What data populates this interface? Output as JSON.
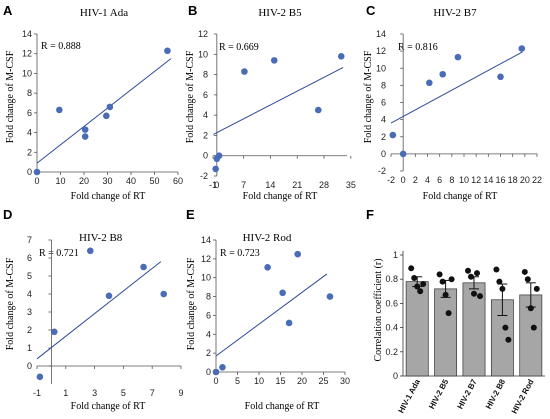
{
  "chart_data": [
    {
      "type": "scatter",
      "panel": "A",
      "title": "HIV-1 Ada",
      "annotation": "R = 0.888",
      "xlabel": "Fold change of RT",
      "ylabel": "Fold change of M-CSF",
      "xlim": [
        0,
        60
      ],
      "ylim": [
        0,
        14
      ],
      "xticks": [
        0,
        10,
        20,
        30,
        40,
        50,
        60
      ],
      "yticks": [
        0,
        2,
        4,
        6,
        8,
        10,
        12,
        14
      ],
      "points": [
        [
          0,
          0
        ],
        [
          9.5,
          6.3
        ],
        [
          20.5,
          3.6
        ],
        [
          20.5,
          4.3
        ],
        [
          29.5,
          5.7
        ],
        [
          31,
          6.6
        ],
        [
          55.5,
          12.3
        ]
      ],
      "trendline": [
        [
          0,
          0.9
        ],
        [
          57,
          11.5
        ]
      ]
    },
    {
      "type": "scatter",
      "panel": "B",
      "title": "HIV-2 B5",
      "annotation": "R = 0.669",
      "xlabel": "Fold change of RT",
      "ylabel": "Fold change of M-CSF",
      "xlim": [
        -1,
        34
      ],
      "ylim": [
        -2,
        12
      ],
      "xticks": [
        -1,
        0,
        7,
        14,
        21,
        28,
        35
      ],
      "xtick_labels": [
        "-1",
        "0",
        "7",
        "14",
        "21",
        "28",
        "35"
      ],
      "yticks": [
        -2,
        0,
        2,
        4,
        6,
        8,
        10,
        12
      ],
      "points": [
        [
          -0.3,
          -1.3
        ],
        [
          0,
          -0.3
        ],
        [
          0.6,
          0
        ],
        [
          7.2,
          8.3
        ],
        [
          15,
          9.4
        ],
        [
          26.5,
          4.5
        ],
        [
          32.5,
          9.8
        ]
      ],
      "trendline": [
        [
          -0.9,
          2.1
        ],
        [
          33,
          8.7
        ]
      ]
    },
    {
      "type": "scatter",
      "panel": "C",
      "title": "HIV-2 B7",
      "annotation": "R = 0.816",
      "xlabel": "Fold change of RT",
      "ylabel": "Fold change of M-CSF",
      "xlim": [
        -2,
        22
      ],
      "ylim": [
        -2,
        14
      ],
      "xticks": [
        -2,
        0,
        2,
        4,
        6,
        8,
        10,
        12,
        14,
        16,
        18,
        20,
        22
      ],
      "yticks": [
        -2,
        0,
        2,
        4,
        6,
        8,
        10,
        12,
        14
      ],
      "points": [
        [
          -1.7,
          2.2
        ],
        [
          0,
          0
        ],
        [
          4.3,
          8.3
        ],
        [
          6.5,
          9.3
        ],
        [
          9,
          11.3
        ],
        [
          16,
          9
        ],
        [
          19.5,
          12.3
        ]
      ],
      "trendline": [
        [
          -2,
          3.6
        ],
        [
          19.6,
          11.9
        ]
      ]
    },
    {
      "type": "scatter",
      "panel": "D",
      "title": "HIV-2 B8",
      "annotation": "R = 0.721",
      "xlabel": "Fold change of RT",
      "ylabel": "Fold change of M-CSF",
      "xlim": [
        -1,
        9
      ],
      "ylim": [
        -1,
        7
      ],
      "xticks": [
        -1,
        1,
        3,
        5,
        7,
        9
      ],
      "yticks": [
        0,
        1,
        2,
        3,
        4,
        5,
        6,
        7
      ],
      "points": [
        [
          -0.8,
          -0.6
        ],
        [
          0.2,
          1.9
        ],
        [
          2.7,
          6.4
        ],
        [
          4,
          3.9
        ],
        [
          6.4,
          5.5
        ],
        [
          7.8,
          4
        ]
      ],
      "trendline": [
        [
          -1,
          0.4
        ],
        [
          7.6,
          5.8
        ]
      ]
    },
    {
      "type": "scatter",
      "panel": "E",
      "title": "HIV-2 Rod",
      "annotation": "R = 0.723",
      "xlabel": "Fold change of RT",
      "ylabel": "Fold change of M-CSF",
      "xlim": [
        0,
        30
      ],
      "ylim": [
        0,
        14
      ],
      "xticks": [
        0,
        5,
        10,
        15,
        20,
        25,
        30
      ],
      "yticks": [
        0,
        2,
        4,
        6,
        8,
        10,
        12,
        14
      ],
      "points": [
        [
          0,
          0
        ],
        [
          1.5,
          0.5
        ],
        [
          12,
          11.1
        ],
        [
          15.5,
          8.4
        ],
        [
          17,
          5.2
        ],
        [
          19,
          12.5
        ],
        [
          26.5,
          8
        ]
      ],
      "trendline": [
        [
          0,
          1.7
        ],
        [
          25.8,
          10.4
        ]
      ]
    },
    {
      "type": "bar",
      "panel": "F",
      "ylabel": "Correlation coefficient (r)",
      "ylim": [
        0,
        1
      ],
      "yticks": [
        0,
        0.2,
        0.4,
        0.6,
        0.8,
        1
      ],
      "ytick_labels": [
        "0",
        "0.2",
        "0.4",
        "0.6",
        "0.8",
        "1"
      ],
      "categories": [
        "HIV-1 Ada",
        "HIV-2 B5",
        "HIV-2 B7",
        "HIV-2 B8",
        "HIV-2 Rod"
      ],
      "values": [
        0.78,
        0.72,
        0.77,
        0.63,
        0.67
      ],
      "errors": [
        0.04,
        0.07,
        0.05,
        0.13,
        0.1
      ],
      "points": [
        [
          0.89,
          0.81,
          0.74,
          0.7,
          0.76
        ],
        [
          0.84,
          0.78,
          0.67,
          0.52,
          0.8
        ],
        [
          0.87,
          0.82,
          0.68,
          0.85,
          0.66
        ],
        [
          0.88,
          0.78,
          0.72,
          0.4,
          0.3
        ],
        [
          0.86,
          0.8,
          0.56,
          0.4,
          0.72
        ]
      ],
      "bar_color": "#a6a6a6"
    }
  ],
  "colors": {
    "point": "#4a6bb5",
    "line": "#2e4a9a",
    "axis": "#555555"
  }
}
